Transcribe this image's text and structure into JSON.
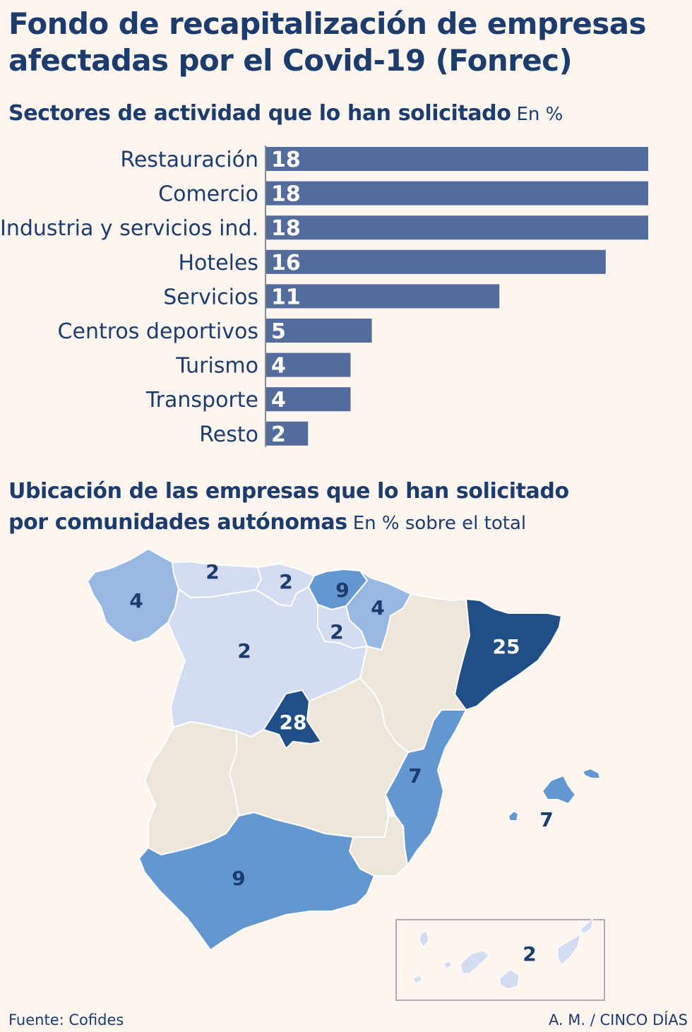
{
  "title": "Fondo de recapitalización de empresas afectadas por el Covid-19 (Fonrec)",
  "bar_section": {
    "title": "Sectores de actividad que lo han solicitado",
    "unit": "En %"
  },
  "map_section": {
    "title_line1": "Ubicación de las empresas que lo han solicitado",
    "title_line2": "por comunidades autónomas",
    "unit": "En % sobre el total"
  },
  "colors": {
    "background": "#fdf5ef",
    "bar": "#546c9c",
    "text": "#1d3c6e",
    "map_neutral": "#ede6db",
    "map_light": "#d3dcf1",
    "map_mid": "#98b8e2",
    "map_strong": "#6497cf",
    "map_dark": "#1f4f86"
  },
  "chart_data": [
    {
      "type": "bar",
      "orientation": "horizontal",
      "title": "Sectores de actividad que lo han solicitado",
      "unit": "En %",
      "categories": [
        "Restauración",
        "Comercio",
        "Industria y servicios ind.",
        "Hoteles",
        "Servicios",
        "Centros deportivos",
        "Turismo",
        "Transporte",
        "Resto"
      ],
      "values": [
        18,
        18,
        18,
        16,
        11,
        5,
        4,
        4,
        2
      ],
      "xlim": [
        0,
        18
      ],
      "grid": false,
      "data_labels": true
    },
    {
      "type": "choropleth",
      "title": "Ubicación de las empresas que lo han solicitado por comunidades autónomas",
      "unit": "En % sobre el total",
      "regions": [
        {
          "region": "Galicia",
          "value": 4
        },
        {
          "region": "Asturias",
          "value": 2
        },
        {
          "region": "Cantabria",
          "value": 2
        },
        {
          "region": "País Vasco",
          "value": 9
        },
        {
          "region": "Navarra",
          "value": 4
        },
        {
          "region": "La Rioja",
          "value": 2
        },
        {
          "region": "Castilla y León",
          "value": 2
        },
        {
          "region": "Cataluña",
          "value": 25
        },
        {
          "region": "Madrid",
          "value": 28
        },
        {
          "region": "Comunidad Valenciana",
          "value": 7
        },
        {
          "region": "Baleares",
          "value": 7
        },
        {
          "region": "Andalucía",
          "value": 9
        },
        {
          "region": "Canarias",
          "value": 2
        },
        {
          "region": "Aragón",
          "value": null
        },
        {
          "region": "Extremadura",
          "value": null
        },
        {
          "region": "Castilla-La Mancha",
          "value": null
        },
        {
          "region": "Murcia",
          "value": null
        }
      ]
    }
  ],
  "footer": {
    "source": "Fuente: Cofides",
    "credit": "A. M. / CINCO DÍAS"
  }
}
